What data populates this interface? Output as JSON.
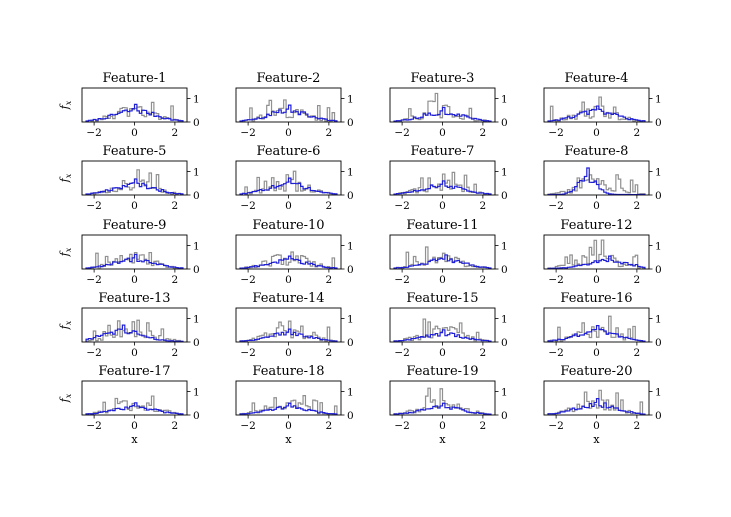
{
  "chart_data": {
    "type": "histogram-grid",
    "rows": 5,
    "cols": 4,
    "xlim": [
      -2.6,
      2.6
    ],
    "ylim": [
      0,
      1.45
    ],
    "xticks": [
      -2,
      0,
      2
    ],
    "yticks": [
      0,
      1
    ],
    "xlabel": "x",
    "ylabel": "f",
    "ylabel_sub": "x",
    "colors": {
      "reference": "#909090",
      "fitted": "#1f1fd6",
      "axes": "#000000"
    },
    "panels": [
      {
        "title": "Feature-1",
        "peak": 0.75,
        "center": 0.0
      },
      {
        "title": "Feature-2",
        "peak": 0.72,
        "center": 0.0
      },
      {
        "title": "Feature-3",
        "peak": 0.62,
        "center": 0.0
      },
      {
        "title": "Feature-4",
        "peak": 0.68,
        "center": 0.0
      },
      {
        "title": "Feature-5",
        "peak": 0.68,
        "center": 0.0
      },
      {
        "title": "Feature-6",
        "peak": 0.72,
        "center": 0.0
      },
      {
        "title": "Feature-7",
        "peak": 0.6,
        "center": 0.0
      },
      {
        "title": "Feature-8",
        "peak": 1.15,
        "center": -0.45
      },
      {
        "title": "Feature-9",
        "peak": 0.62,
        "center": 0.0
      },
      {
        "title": "Feature-10",
        "peak": 0.55,
        "center": 0.0
      },
      {
        "title": "Feature-11",
        "peak": 0.6,
        "center": 0.1
      },
      {
        "title": "Feature-12",
        "peak": 0.55,
        "center": 0.6
      },
      {
        "title": "Feature-13",
        "peak": 0.72,
        "center": -0.6
      },
      {
        "title": "Feature-14",
        "peak": 0.55,
        "center": 0.0
      },
      {
        "title": "Feature-15",
        "peak": 0.52,
        "center": 0.0
      },
      {
        "title": "Feature-16",
        "peak": 0.7,
        "center": 0.0
      },
      {
        "title": "Feature-17",
        "peak": 0.52,
        "center": 0.0
      },
      {
        "title": "Feature-18",
        "peak": 0.5,
        "center": 0.0
      },
      {
        "title": "Feature-19",
        "peak": 0.5,
        "center": 0.0
      },
      {
        "title": "Feature-20",
        "peak": 0.7,
        "center": 0.0
      }
    ]
  }
}
